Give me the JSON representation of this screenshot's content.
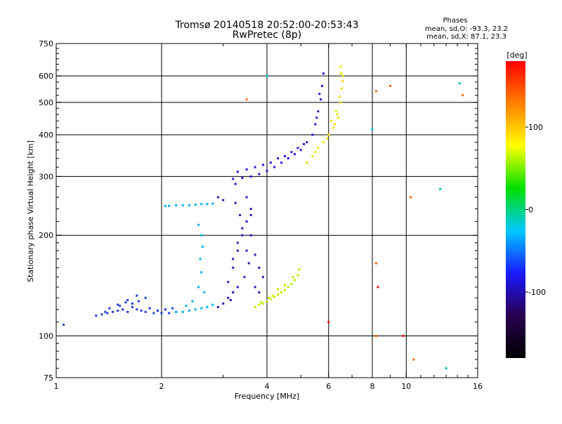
{
  "title_line1": "Tromsø 20140518 20:52:00-20:53:43",
  "title_line2": "RwPretec (8p)",
  "phases": {
    "heading": "Phases",
    "line_o": "mean, sd,O: -93.3, 23.2",
    "line_x": "mean, sd,X: 87.1, 23.3"
  },
  "chart_data": {
    "type": "scatter",
    "xlabel": "Frequency [MHz]",
    "ylabel": "Stationary phase Virtual Height [km]",
    "x_scale": "log",
    "y_scale": "log",
    "xlim": [
      1,
      16
    ],
    "ylim": [
      75,
      750
    ],
    "x_ticks": [
      1,
      2,
      4,
      6,
      8,
      10,
      16
    ],
    "x_tick_labels": [
      "1",
      "2",
      "4",
      "6",
      "8",
      "10",
      "16"
    ],
    "y_ticks": [
      75,
      100,
      200,
      300,
      400,
      500,
      600,
      750
    ],
    "y_tick_labels": [
      "75",
      "100",
      "200",
      "300",
      "400",
      "500",
      "600",
      "750"
    ],
    "grid": true,
    "grid_x": [
      2,
      4,
      6,
      8,
      10
    ],
    "grid_y": [
      100,
      200,
      300,
      400,
      500,
      600
    ],
    "colorbar": {
      "label": "[deg]",
      "range": [
        -180,
        180
      ],
      "ticks": [
        100,
        0,
        -100
      ],
      "tick_labels": [
        "100",
        "0",
        "-100"
      ],
      "colors": [
        "#000000",
        "#2a0050",
        "#1a1aff",
        "#00c8ff",
        "#00e000",
        "#ffff00",
        "#ff8000",
        "#ff0000"
      ]
    },
    "series": [
      {
        "color": "#1f3cdf",
        "points": [
          [
            1.3,
            115
          ],
          [
            1.35,
            116
          ],
          [
            1.4,
            117
          ],
          [
            1.45,
            118
          ],
          [
            1.5,
            119
          ],
          [
            1.55,
            120
          ],
          [
            1.6,
            118
          ],
          [
            1.65,
            122
          ],
          [
            1.7,
            120
          ],
          [
            1.75,
            119
          ],
          [
            1.8,
            118
          ],
          [
            1.9,
            117
          ],
          [
            2.0,
            117
          ],
          [
            2.1,
            117
          ],
          [
            2.2,
            118
          ],
          [
            1.6,
            128
          ],
          [
            1.7,
            132
          ],
          [
            1.8,
            130
          ],
          [
            1.65,
            125
          ],
          [
            1.5,
            124
          ],
          [
            1.05,
            108
          ],
          [
            1.42,
            121
          ],
          [
            1.58,
            126
          ],
          [
            1.72,
            127
          ],
          [
            1.85,
            121
          ],
          [
            1.95,
            119
          ],
          [
            2.05,
            120
          ],
          [
            2.15,
            121
          ],
          [
            1.52,
            123
          ],
          [
            1.38,
            118
          ]
        ]
      },
      {
        "color": "#00b0f0",
        "points": [
          [
            2.2,
            118
          ],
          [
            2.3,
            118
          ],
          [
            2.4,
            119
          ],
          [
            2.5,
            120
          ],
          [
            2.6,
            121
          ],
          [
            2.7,
            122
          ],
          [
            2.8,
            124
          ],
          [
            2.55,
            140
          ],
          [
            2.6,
            155
          ],
          [
            2.58,
            170
          ],
          [
            2.62,
            185
          ],
          [
            2.6,
            200
          ],
          [
            2.55,
            215
          ],
          [
            2.05,
            245
          ],
          [
            2.1,
            245
          ],
          [
            2.2,
            246
          ],
          [
            2.3,
            246
          ],
          [
            2.4,
            246
          ],
          [
            2.5,
            247
          ],
          [
            2.6,
            248
          ],
          [
            2.7,
            248
          ],
          [
            2.8,
            249
          ],
          [
            2.45,
            127
          ],
          [
            2.65,
            135
          ],
          [
            2.35,
            123
          ]
        ]
      },
      {
        "color": "#3a10b0",
        "points": [
          [
            2.9,
            122
          ],
          [
            3.0,
            125
          ],
          [
            3.1,
            130
          ],
          [
            3.2,
            135
          ],
          [
            3.3,
            140
          ],
          [
            3.2,
            160
          ],
          [
            3.3,
            180
          ],
          [
            3.4,
            200
          ],
          [
            3.5,
            220
          ],
          [
            3.6,
            240
          ],
          [
            3.5,
            260
          ],
          [
            3.6,
            230
          ],
          [
            3.4,
            210
          ],
          [
            3.3,
            190
          ],
          [
            3.2,
            170
          ],
          [
            3.5,
            180
          ],
          [
            3.6,
            200
          ],
          [
            3.7,
            175
          ],
          [
            3.8,
            160
          ],
          [
            3.9,
            150
          ],
          [
            3.1,
            145
          ],
          [
            3.45,
            150
          ],
          [
            3.55,
            165
          ],
          [
            3.35,
            230
          ],
          [
            3.25,
            250
          ],
          [
            3.0,
            255
          ],
          [
            2.9,
            260
          ],
          [
            3.7,
            140
          ],
          [
            3.8,
            135
          ],
          [
            3.15,
            128
          ]
        ]
      },
      {
        "color": "#2a1ad8",
        "points": [
          [
            3.2,
            295
          ],
          [
            3.4,
            297
          ],
          [
            3.6,
            300
          ],
          [
            3.8,
            305
          ],
          [
            4.0,
            312
          ],
          [
            4.2,
            320
          ],
          [
            4.4,
            330
          ],
          [
            4.6,
            340
          ],
          [
            4.8,
            350
          ],
          [
            5.0,
            360
          ],
          [
            5.2,
            380
          ],
          [
            5.4,
            400
          ],
          [
            5.5,
            430
          ],
          [
            5.6,
            470
          ],
          [
            5.7,
            510
          ],
          [
            5.75,
            560
          ],
          [
            5.8,
            610
          ],
          [
            3.3,
            310
          ],
          [
            3.5,
            315
          ],
          [
            3.7,
            320
          ],
          [
            3.9,
            325
          ],
          [
            4.1,
            330
          ],
          [
            4.3,
            340
          ],
          [
            4.5,
            345
          ],
          [
            4.7,
            355
          ],
          [
            4.9,
            365
          ],
          [
            5.1,
            375
          ],
          [
            3.25,
            285
          ],
          [
            5.65,
            530
          ],
          [
            5.55,
            450
          ]
        ]
      },
      {
        "color": "#b8f000",
        "points": [
          [
            3.7,
            122
          ],
          [
            3.8,
            124
          ],
          [
            3.9,
            125
          ],
          [
            4.0,
            127
          ],
          [
            4.1,
            129
          ],
          [
            4.2,
            131
          ],
          [
            4.3,
            133
          ],
          [
            4.4,
            135
          ],
          [
            4.5,
            137
          ],
          [
            4.6,
            140
          ],
          [
            4.7,
            143
          ],
          [
            4.8,
            147
          ],
          [
            4.9,
            152
          ],
          [
            4.95,
            158
          ],
          [
            4.3,
            138
          ],
          [
            4.5,
            142
          ],
          [
            4.15,
            132
          ],
          [
            4.75,
            150
          ],
          [
            3.85,
            126
          ],
          [
            4.05,
            130
          ]
        ]
      },
      {
        "color": "#f0e000",
        "points": [
          [
            5.2,
            330
          ],
          [
            5.4,
            345
          ],
          [
            5.6,
            365
          ],
          [
            5.8,
            380
          ],
          [
            6.0,
            400
          ],
          [
            6.2,
            420
          ],
          [
            6.4,
            450
          ],
          [
            6.5,
            500
          ],
          [
            6.55,
            550
          ],
          [
            6.6,
            600
          ],
          [
            6.5,
            640
          ],
          [
            6.3,
            470
          ],
          [
            6.1,
            440
          ],
          [
            6.45,
            520
          ],
          [
            6.58,
            580
          ],
          [
            5.95,
            390
          ],
          [
            6.35,
            460
          ],
          [
            6.52,
            610
          ],
          [
            5.5,
            355
          ],
          [
            6.25,
            430
          ]
        ]
      },
      {
        "color": "#ff6a00",
        "points": [
          [
            8.2,
            540
          ],
          [
            9.0,
            560
          ],
          [
            10.3,
            260
          ],
          [
            8.2,
            100
          ],
          [
            8.2,
            165
          ],
          [
            10.5,
            85
          ],
          [
            14.5,
            525
          ],
          [
            3.5,
            510
          ]
        ]
      },
      {
        "color": "#00c0c0",
        "points": [
          [
            8.0,
            415
          ],
          [
            12.5,
            275
          ],
          [
            13.0,
            80
          ],
          [
            4.0,
            600
          ],
          [
            14.2,
            570
          ]
        ]
      },
      {
        "color": "#ff1010",
        "points": [
          [
            6.0,
            110
          ],
          [
            9.8,
            100
          ],
          [
            8.3,
            140
          ]
        ]
      }
    ]
  }
}
